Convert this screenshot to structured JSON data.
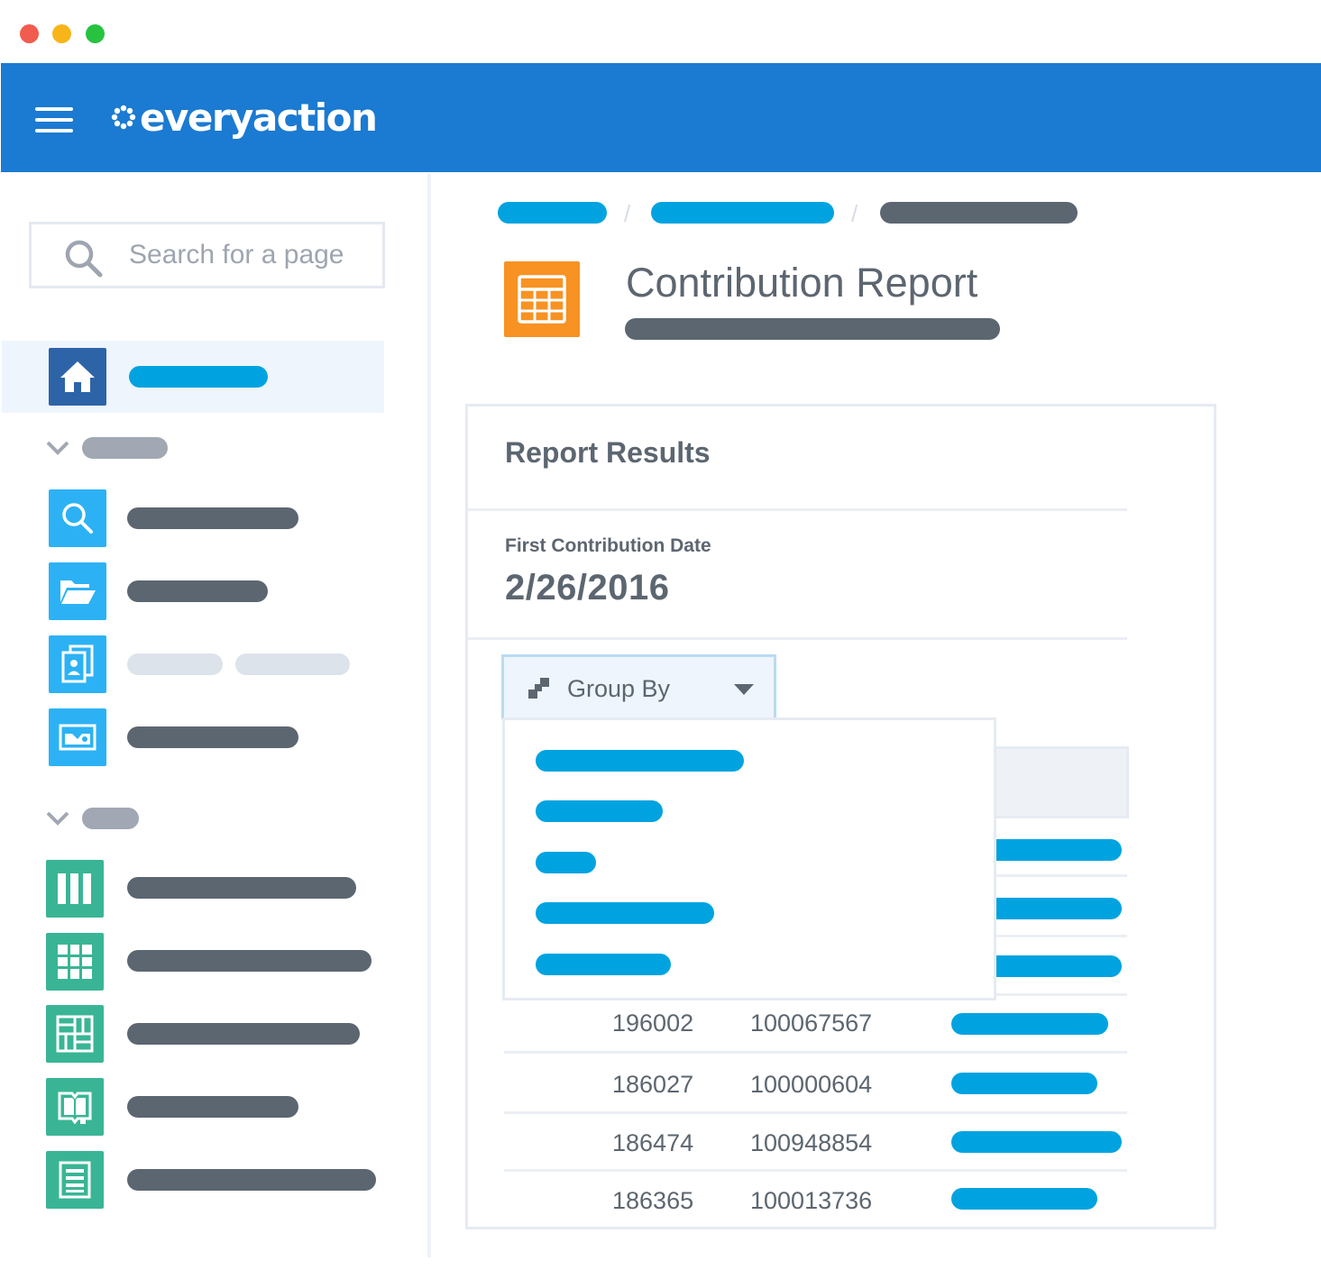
{
  "window": {
    "controls": [
      "close",
      "minimize",
      "maximize"
    ],
    "colors": {
      "close": "#f25c4f",
      "minimize": "#f7b51a",
      "maximize": "#27c340"
    }
  },
  "header": {
    "brand": "everyaction",
    "menu_icon": "hamburger-icon",
    "logo_icon": "flower-dots-icon",
    "color": "#1b7ad1"
  },
  "sidebar": {
    "search": {
      "placeholder": "Search for a page",
      "icon": "search-icon"
    },
    "icons": [
      "home-icon",
      "search-icon",
      "folder-open-icon",
      "contact-cards-icon",
      "id-card-icon",
      "columns-icon",
      "grid-icon",
      "layout-icon",
      "book-icon",
      "list-document-icon"
    ]
  },
  "page": {
    "title": "Contribution Report",
    "icon": "spreadsheet-icon"
  },
  "report": {
    "section_title": "Report Results",
    "field_label": "First Contribution Date",
    "field_value": "2/26/2016",
    "group_by": {
      "label": "Group By",
      "icon": "group-squares-icon"
    },
    "rows": [
      {
        "col1": "196002",
        "col2": "100067567"
      },
      {
        "col1": "186027",
        "col2": "100000604"
      },
      {
        "col1": "186474",
        "col2": "100948854"
      },
      {
        "col1": "186365",
        "col2": "100013736"
      }
    ]
  }
}
